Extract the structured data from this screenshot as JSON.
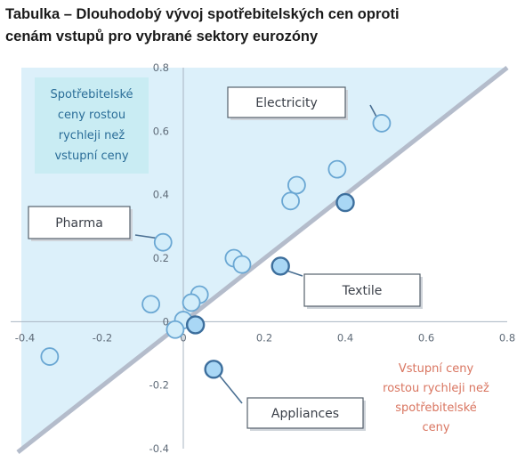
{
  "title": {
    "line1": "Tabulka – Dlouhodobý vývoj spotřebitelských cen oproti",
    "line2": "cenám vstupů pro vybrané sektory eurozóny"
  },
  "chart_data": {
    "type": "scatter",
    "xlim": [
      -0.4,
      0.8
    ],
    "ylim": [
      -0.4,
      0.8
    ],
    "x_ticks": [
      "-0.4",
      "-0.2",
      "0",
      "0.2",
      "0.4",
      "0.6",
      "0.8"
    ],
    "y_ticks": [
      "0.8",
      "0.6",
      "0.4",
      "0.2",
      "0",
      "-0.2",
      "-0.4"
    ],
    "diagonal": [
      [
        -0.4,
        -0.4
      ],
      [
        0.8,
        0.8
      ]
    ],
    "colors": {
      "region_fill": "#dcf0fa",
      "diagonal": "#b4bccb",
      "point_fill": "#d2edfa",
      "point_stroke": "#6aa7d3",
      "highlight_fill": "#a9d7f5",
      "highlight_stroke": "#3d6f9d",
      "upper_box": "#c9ecf3",
      "upper_text": "#2a6d98",
      "lower_text": "#d97560"
    },
    "points": [
      {
        "x": 0.49,
        "y": 0.625,
        "highlight": false,
        "label": "Electricity"
      },
      {
        "x": 0.38,
        "y": 0.48,
        "highlight": false
      },
      {
        "x": 0.28,
        "y": 0.43,
        "highlight": false
      },
      {
        "x": 0.265,
        "y": 0.38,
        "highlight": false
      },
      {
        "x": 0.4,
        "y": 0.375,
        "highlight": true
      },
      {
        "x": -0.05,
        "y": 0.25,
        "highlight": false,
        "label": "Pharma"
      },
      {
        "x": 0.125,
        "y": 0.2,
        "highlight": false
      },
      {
        "x": 0.145,
        "y": 0.18,
        "highlight": false
      },
      {
        "x": 0.24,
        "y": 0.175,
        "highlight": true,
        "label": "Textile"
      },
      {
        "x": 0.04,
        "y": 0.085,
        "highlight": false
      },
      {
        "x": 0.02,
        "y": 0.06,
        "highlight": false
      },
      {
        "x": -0.08,
        "y": 0.055,
        "highlight": false
      },
      {
        "x": 0.0,
        "y": 0.005,
        "highlight": false
      },
      {
        "x": 0.03,
        "y": -0.01,
        "highlight": true
      },
      {
        "x": -0.02,
        "y": -0.025,
        "highlight": false
      },
      {
        "x": -0.33,
        "y": -0.11,
        "highlight": false
      },
      {
        "x": 0.075,
        "y": -0.15,
        "highlight": true,
        "label": "Appliances"
      }
    ],
    "callouts": [
      {
        "text": "Electricity",
        "target": 0
      },
      {
        "text": "Pharma",
        "target": 5
      },
      {
        "text": "Textile",
        "target": 8
      },
      {
        "text": "Appliances",
        "target": 16
      }
    ],
    "regions": {
      "upper": [
        "Spotřebitelské",
        "ceny rostou",
        "rychleji než",
        "vstupní ceny"
      ],
      "lower": [
        "Vstupní  ceny",
        "rostou rychleji než",
        "spotřebitelské",
        "ceny"
      ]
    }
  }
}
